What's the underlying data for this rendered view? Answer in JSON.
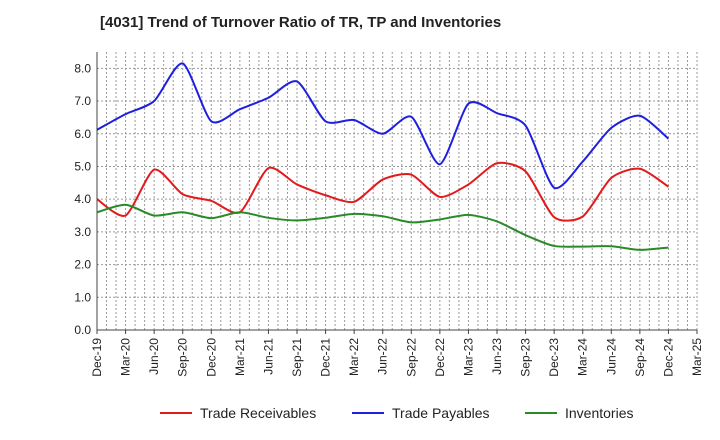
{
  "chart_data": {
    "type": "line",
    "title": "[4031]  Trend of Turnover Ratio of TR, TP and Inventories",
    "xlabel": "",
    "ylabel": "",
    "ylim": [
      0,
      8.5
    ],
    "yticks": [
      "0.0",
      "1.0",
      "2.0",
      "3.0",
      "4.0",
      "5.0",
      "6.0",
      "7.0",
      "8.0"
    ],
    "x": [
      "Dec-19",
      "Mar-20",
      "Jun-20",
      "Sep-20",
      "Dec-20",
      "Mar-21",
      "Jun-21",
      "Sep-21",
      "Dec-21",
      "Mar-22",
      "Jun-22",
      "Sep-22",
      "Dec-22",
      "Mar-23",
      "Jun-23",
      "Sep-23",
      "Dec-23",
      "Mar-24",
      "Jun-24",
      "Sep-24",
      "Dec-24",
      "Mar-25"
    ],
    "grid": true,
    "legend_position": "bottom",
    "series": [
      {
        "name": "Trade Receivables",
        "color": "#e31a1c",
        "values": [
          4.0,
          3.5,
          4.9,
          4.15,
          3.95,
          3.6,
          4.95,
          4.45,
          4.12,
          3.92,
          4.6,
          4.75,
          4.07,
          4.45,
          5.1,
          4.85,
          3.45,
          3.47,
          4.65,
          4.93,
          4.38,
          null
        ]
      },
      {
        "name": "Trade Payables",
        "color": "#1f1fe0",
        "values": [
          6.12,
          6.6,
          7.0,
          8.15,
          6.38,
          6.75,
          7.1,
          7.6,
          6.38,
          6.42,
          6.0,
          6.52,
          5.07,
          6.92,
          6.63,
          6.25,
          4.35,
          5.15,
          6.18,
          6.55,
          5.85,
          null
        ]
      },
      {
        "name": "Inventories",
        "color": "#2a8a2a",
        "values": [
          3.6,
          3.83,
          3.5,
          3.6,
          3.42,
          3.6,
          3.43,
          3.35,
          3.43,
          3.55,
          3.48,
          3.29,
          3.38,
          3.52,
          3.32,
          2.9,
          2.57,
          2.55,
          2.56,
          2.45,
          2.52,
          null
        ]
      }
    ]
  }
}
